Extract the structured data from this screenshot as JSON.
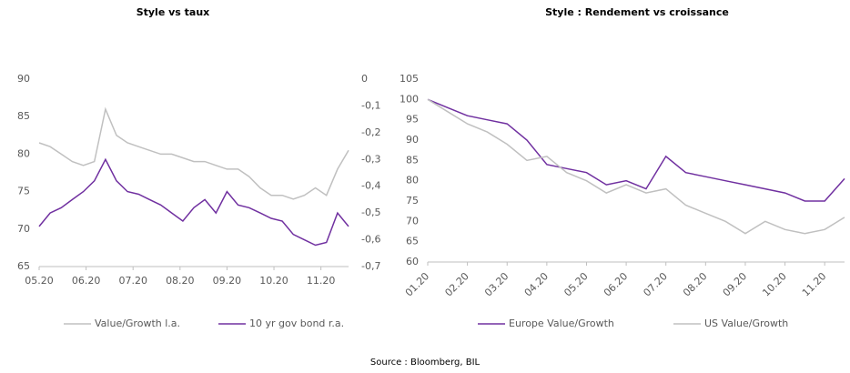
{
  "chart_data": [
    {
      "type": "line",
      "title": "Style vs taux",
      "x": [
        0,
        1,
        2,
        3,
        4,
        5,
        6,
        7,
        8,
        9,
        10,
        11,
        12,
        13,
        14,
        15,
        16,
        17,
        18,
        19,
        20,
        21,
        22,
        23,
        24,
        25,
        26,
        27,
        28
      ],
      "xlim": [
        0,
        28
      ],
      "xticks": [
        {
          "value": 0,
          "label": "05.20"
        },
        {
          "value": 4.25,
          "label": "06.20"
        },
        {
          "value": 8.5,
          "label": "07.20"
        },
        {
          "value": 12.75,
          "label": "08.20"
        },
        {
          "value": 17,
          "label": "09.20"
        },
        {
          "value": 21.25,
          "label": "10.20"
        },
        {
          "value": 25.5,
          "label": "11.20"
        }
      ],
      "ylim": [
        65,
        90
      ],
      "yticks": [
        65,
        70,
        75,
        80,
        85,
        90
      ],
      "y2lim": [
        -0.7,
        0
      ],
      "y2ticks": [
        {
          "value": -0.7,
          "label": "-0,7"
        },
        {
          "value": -0.6,
          "label": "-0,6"
        },
        {
          "value": -0.5,
          "label": "-0,5"
        },
        {
          "value": -0.4,
          "label": "-0,4"
        },
        {
          "value": -0.3,
          "label": "-0,3"
        },
        {
          "value": -0.2,
          "label": "-0,2"
        },
        {
          "value": -0.1,
          "label": "-0,1"
        },
        0
      ],
      "series": [
        {
          "name": "Value/Growth l.a.",
          "color": "#c0c0c0",
          "values": [
            81.5,
            81,
            80,
            79,
            78.5,
            79,
            86,
            82.5,
            81.5,
            81,
            80.5,
            80,
            80,
            79.5,
            79,
            79,
            78.5,
            78,
            78,
            77,
            75.5,
            74.5,
            74.5,
            74,
            74.5,
            75.5,
            74.5,
            78,
            80.5
          ]
        },
        {
          "name": "10 yr gov bond r.a.",
          "color": "#7030a0",
          "axis": "y2",
          "values": [
            -0.55,
            -0.5,
            -0.48,
            -0.45,
            -0.42,
            -0.38,
            -0.3,
            -0.38,
            -0.42,
            -0.43,
            -0.45,
            -0.47,
            -0.5,
            -0.53,
            -0.48,
            -0.45,
            -0.5,
            -0.42,
            -0.47,
            -0.48,
            -0.5,
            -0.52,
            -0.53,
            -0.58,
            -0.6,
            -0.62,
            -0.61,
            -0.5,
            -0.55
          ]
        }
      ]
    },
    {
      "type": "line",
      "title": "Style : Rendement vs croissance",
      "x": [
        0,
        1,
        2,
        3,
        4,
        5,
        6,
        7,
        8,
        9,
        10,
        11,
        12,
        13,
        14,
        15,
        16,
        17,
        18,
        19,
        20,
        21
      ],
      "xlim": [
        0,
        21
      ],
      "xticks": [
        {
          "value": 0,
          "label": "01.20"
        },
        {
          "value": 2,
          "label": "02.20"
        },
        {
          "value": 4,
          "label": "03.20"
        },
        {
          "value": 6,
          "label": "04.20"
        },
        {
          "value": 8,
          "label": "05.20"
        },
        {
          "value": 10,
          "label": "06.20"
        },
        {
          "value": 12,
          "label": "07.20"
        },
        {
          "value": 14,
          "label": "08.20"
        },
        {
          "value": 16,
          "label": "09.20"
        },
        {
          "value": 18,
          "label": "10.20"
        },
        {
          "value": 20,
          "label": "11.20"
        }
      ],
      "ylim": [
        60,
        105
      ],
      "yticks": [
        60,
        65,
        70,
        75,
        80,
        85,
        90,
        95,
        100,
        105
      ],
      "series": [
        {
          "name": "Europe Value/Growth",
          "color": "#7030a0",
          "values": [
            100,
            98,
            96,
            95,
            94,
            90,
            84,
            83,
            82,
            79,
            80,
            78,
            86,
            82,
            81,
            80,
            79,
            78,
            77,
            75,
            75,
            80.5
          ]
        },
        {
          "name": "US Value/Growth",
          "color": "#c0c0c0",
          "values": [
            100,
            97,
            94,
            92,
            89,
            85,
            86,
            82,
            80,
            77,
            79,
            77,
            78,
            74,
            72,
            70,
            67,
            70,
            68,
            67,
            68,
            71
          ]
        }
      ]
    }
  ],
  "source": "Source : Bloomberg, BIL"
}
